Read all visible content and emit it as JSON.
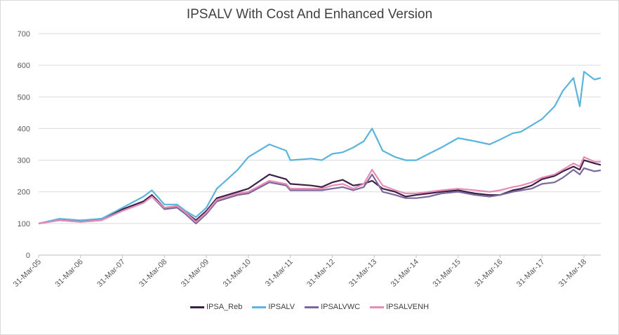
{
  "chart_data": {
    "type": "line",
    "title": "IPSALV With Cost And Enhanced Version",
    "xlabel": "",
    "ylabel": "",
    "ylim": [
      0,
      700
    ],
    "yticks": [
      0,
      100,
      200,
      300,
      400,
      500,
      600,
      700
    ],
    "x_ticks": [
      "31-Mar-05",
      "31-Mar-06",
      "31-Mar-07",
      "31-Mar-08",
      "31-Mar-09",
      "31-Mar-10",
      "31-Mar-11",
      "31-Mar-12",
      "31-Mar-13",
      "31-Mar-14",
      "31-Mar-15",
      "31-Mar-16",
      "31-Mar-17",
      "31-Mar-18"
    ],
    "grid": true,
    "legend_position": "bottom",
    "x": [
      2005.0,
      2005.5,
      2006.0,
      2006.5,
      2007.0,
      2007.5,
      2007.7,
      2008.0,
      2008.3,
      2008.5,
      2008.75,
      2009.0,
      2009.25,
      2009.5,
      2009.75,
      2010.0,
      2010.5,
      2010.9,
      2011.0,
      2011.5,
      2011.75,
      2012.0,
      2012.25,
      2012.5,
      2012.75,
      2012.95,
      2013.2,
      2013.5,
      2013.75,
      2014.0,
      2014.3,
      2014.6,
      2015.0,
      2015.4,
      2015.75,
      2016.0,
      2016.3,
      2016.5,
      2016.75,
      2017.0,
      2017.3,
      2017.5,
      2017.75,
      2017.9,
      2018.0,
      2018.25,
      2018.4
    ],
    "series": [
      {
        "name": "IPSA_Reb",
        "color": "#3d1f47",
        "values": [
          100,
          112,
          108,
          115,
          145,
          170,
          190,
          150,
          155,
          135,
          110,
          140,
          180,
          190,
          200,
          210,
          255,
          240,
          225,
          220,
          215,
          230,
          238,
          220,
          225,
          235,
          210,
          200,
          185,
          190,
          195,
          200,
          205,
          195,
          190,
          190,
          205,
          210,
          220,
          240,
          250,
          265,
          280,
          270,
          300,
          290,
          285
        ]
      },
      {
        "name": "IPSALV",
        "color": "#5ab4dc",
        "values": [
          100,
          115,
          110,
          115,
          150,
          185,
          205,
          160,
          160,
          140,
          120,
          150,
          210,
          240,
          270,
          310,
          350,
          330,
          300,
          305,
          300,
          320,
          325,
          340,
          360,
          400,
          330,
          310,
          300,
          300,
          320,
          340,
          370,
          360,
          350,
          365,
          385,
          390,
          410,
          430,
          470,
          520,
          560,
          470,
          580,
          555,
          560
        ]
      },
      {
        "name": "IPSALVWC",
        "color": "#7a689c",
        "values": [
          100,
          110,
          105,
          110,
          140,
          165,
          185,
          145,
          150,
          130,
          100,
          130,
          170,
          180,
          190,
          195,
          230,
          220,
          205,
          205,
          205,
          210,
          215,
          205,
          215,
          255,
          200,
          190,
          180,
          180,
          185,
          195,
          200,
          190,
          185,
          190,
          200,
          205,
          210,
          225,
          230,
          245,
          270,
          255,
          275,
          265,
          268
        ]
      },
      {
        "name": "IPSALVENH",
        "color": "#e78bb5",
        "values": [
          100,
          110,
          105,
          110,
          140,
          165,
          185,
          150,
          155,
          135,
          105,
          135,
          175,
          185,
          195,
          200,
          235,
          225,
          210,
          210,
          210,
          220,
          225,
          210,
          225,
          270,
          220,
          205,
          195,
          195,
          200,
          205,
          210,
          205,
          200,
          205,
          215,
          220,
          230,
          245,
          255,
          270,
          290,
          280,
          310,
          295,
          295
        ]
      }
    ]
  }
}
